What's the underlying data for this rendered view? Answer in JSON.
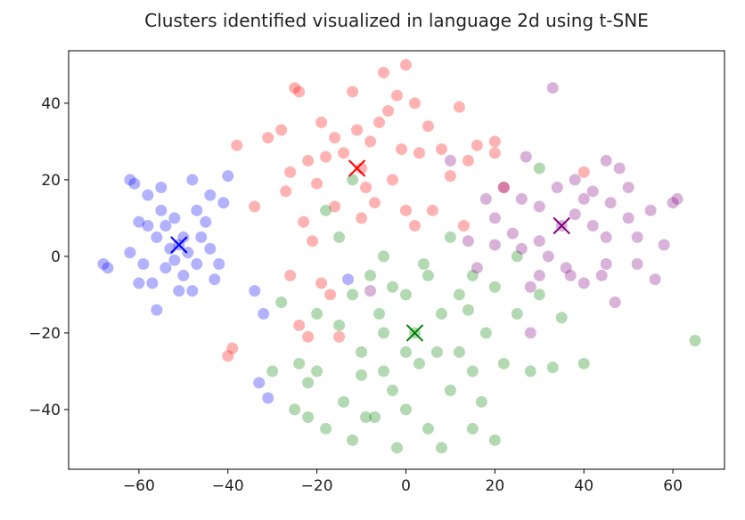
{
  "chart_data": {
    "type": "scatter",
    "title": "Clusters identified visualized in language 2d using t-SNE",
    "xlim": [
      -75.8,
      71.6
    ],
    "ylim": [
      -55.6,
      53.7
    ],
    "xticks": [
      {
        "value": -60,
        "label": "−60"
      },
      {
        "value": -40,
        "label": "−40"
      },
      {
        "value": -20,
        "label": "−20"
      },
      0,
      20,
      40,
      60
    ],
    "yticks": [
      {
        "value": -40,
        "label": "−40"
      },
      {
        "value": -20,
        "label": "−20"
      },
      0,
      20,
      40
    ],
    "alpha": 0.3,
    "series": [
      {
        "color": "#0000ff",
        "marker": "o",
        "x": [
          -68,
          -67,
          -62,
          -61,
          -60,
          -57,
          -58,
          -55,
          -55,
          -54,
          -52,
          -50,
          -51,
          -49,
          -53,
          -56,
          -58,
          -60,
          -62,
          -54,
          -50,
          -47,
          -46,
          -45,
          -44,
          -42,
          -43,
          -48,
          -51,
          -56,
          -44,
          -48,
          -40,
          -41,
          -59,
          -52,
          -47,
          -34,
          -31,
          -33,
          -32,
          -13
        ],
        "y": [
          -2,
          -3,
          20,
          19,
          -7,
          -7,
          16,
          18,
          12,
          8,
          10,
          5,
          3,
          1,
          2,
          5,
          8,
          9,
          1,
          -3,
          -5,
          -2,
          5,
          9,
          2,
          -2,
          -6,
          -9,
          -9,
          -14,
          16,
          20,
          21,
          14,
          -2,
          -1,
          12,
          -9,
          -37,
          -33,
          -15,
          -6
        ]
      },
      {
        "color": "#ff0000",
        "marker": "o",
        "x": [
          -10,
          -5,
          0,
          -25,
          -24,
          -19,
          -16,
          -12,
          -38,
          -31,
          -34,
          -20,
          -22,
          -26,
          -18,
          -14,
          -8,
          -6,
          -4,
          -2,
          2,
          5,
          8,
          10,
          12,
          14,
          16,
          20,
          -1,
          3,
          -3,
          -7,
          -9,
          0,
          2,
          -10,
          -16,
          -21,
          -27,
          -23,
          -40,
          -39,
          -22,
          -19,
          -17,
          6,
          13,
          20,
          22,
          40,
          -15,
          -11,
          -28,
          -24,
          -26
        ],
        "y": [
          23,
          48,
          50,
          44,
          43,
          35,
          31,
          43,
          29,
          31,
          13,
          19,
          25,
          22,
          26,
          27,
          30,
          35,
          38,
          42,
          40,
          34,
          28,
          21,
          39,
          25,
          29,
          27,
          28,
          27,
          20,
          14,
          18,
          12,
          8,
          10,
          13,
          4,
          17,
          9,
          -26,
          -24,
          -21,
          -7,
          -10,
          12,
          8,
          30,
          18,
          22,
          -21,
          33,
          33,
          -18,
          -5
        ]
      },
      {
        "color": "#008000",
        "marker": "o",
        "x": [
          2,
          -8,
          -5,
          0,
          5,
          8,
          3,
          -3,
          -10,
          -15,
          -20,
          -25,
          -22,
          -18,
          -14,
          -9,
          -5,
          0,
          5,
          10,
          12,
          15,
          18,
          22,
          25,
          30,
          35,
          28,
          20,
          15,
          -2,
          8,
          -12,
          -24,
          -28,
          -20,
          -12,
          -6,
          4,
          10,
          15,
          20,
          12,
          25,
          -15,
          -18,
          -12,
          -5,
          7,
          -30,
          40,
          65,
          33,
          -22,
          -10,
          -3,
          17,
          30,
          -7,
          0,
          14
        ],
        "y": [
          -20,
          -5,
          0,
          -10,
          -5,
          -15,
          -28,
          -35,
          -25,
          -18,
          -30,
          -40,
          -33,
          -45,
          -38,
          -42,
          -30,
          -40,
          -45,
          -35,
          -25,
          -30,
          -20,
          -28,
          -15,
          -10,
          -16,
          -30,
          -48,
          -45,
          -50,
          -50,
          -48,
          -28,
          -12,
          -15,
          -10,
          -15,
          -2,
          5,
          -5,
          -8,
          -10,
          0,
          5,
          12,
          20,
          -20,
          -25,
          -30,
          -28,
          -22,
          -29,
          -42,
          -31,
          -8,
          -38,
          23,
          -42,
          -25,
          -14
        ]
      },
      {
        "color": "#800080",
        "marker": "o",
        "x": [
          35,
          33,
          45,
          48,
          40,
          38,
          42,
          45,
          50,
          52,
          55,
          60,
          61,
          58,
          56,
          52,
          47,
          44,
          40,
          36,
          32,
          30,
          28,
          26,
          24,
          20,
          18,
          22,
          26,
          30,
          34,
          38,
          42,
          46,
          30,
          27,
          20,
          10,
          14,
          16,
          45,
          50,
          37,
          28,
          -8
        ],
        "y": [
          8,
          44,
          25,
          23,
          15,
          11,
          8,
          5,
          10,
          5,
          12,
          14,
          15,
          3,
          -6,
          -2,
          -12,
          -5,
          -7,
          -3,
          0,
          -5,
          -8,
          2,
          6,
          10,
          15,
          18,
          15,
          13,
          18,
          20,
          17,
          14,
          4,
          26,
          3,
          25,
          4,
          -3,
          -2,
          18,
          -5,
          -20,
          -9
        ]
      },
      {
        "marker": "x",
        "colors": [
          "#0000ff",
          "#ff0000",
          "#008000",
          "#800080"
        ],
        "x": [
          -51,
          -11,
          2,
          35
        ],
        "y": [
          3,
          23,
          -20,
          8
        ]
      }
    ]
  }
}
